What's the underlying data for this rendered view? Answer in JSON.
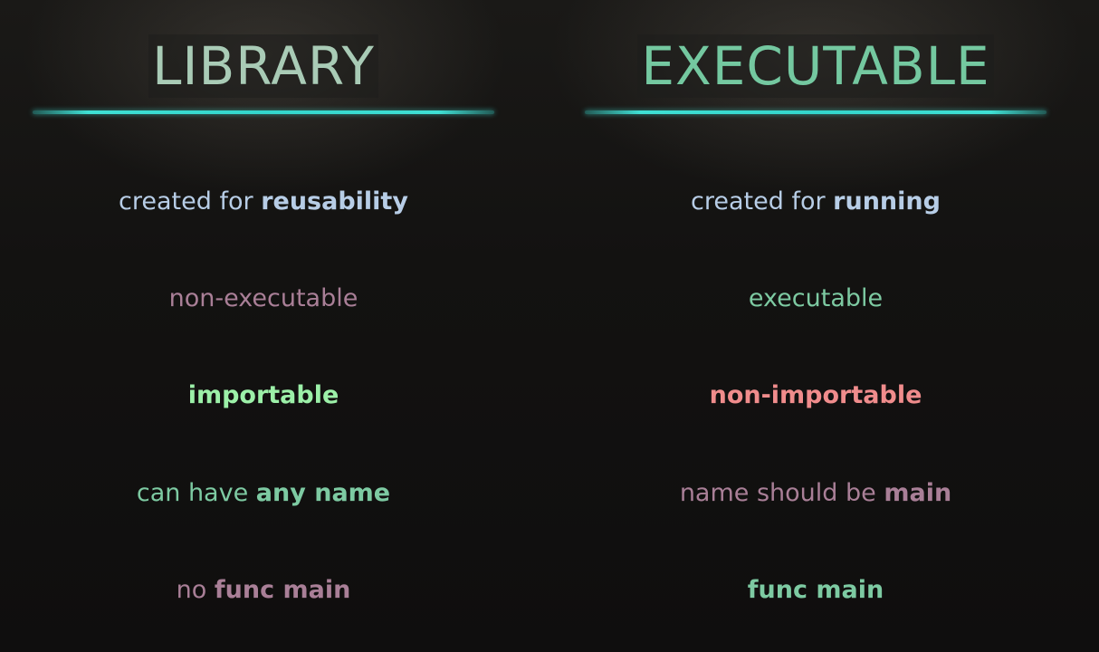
{
  "library": {
    "title": "LIBRARY",
    "rows": [
      {
        "prefix": "created for ",
        "bold": "reusability"
      },
      {
        "prefix": "non-executable",
        "bold": ""
      },
      {
        "prefix": "",
        "bold": "importable"
      },
      {
        "prefix": "can have ",
        "bold": "any name"
      },
      {
        "prefix": "no ",
        "bold": "func main"
      }
    ]
  },
  "executable": {
    "title": "EXECUTABLE",
    "rows": [
      {
        "prefix": "created for ",
        "bold": "running"
      },
      {
        "prefix": "executable",
        "bold": ""
      },
      {
        "prefix": "",
        "bold": "non-importable"
      },
      {
        "prefix": "name should be ",
        "bold": "main"
      },
      {
        "prefix": "",
        "bold": "func main"
      }
    ]
  },
  "colors": {
    "background": "#121110",
    "underline": "#33d6cc",
    "library_title": "#a9cbb6",
    "executable_title": "#74c8a0",
    "blue": "#b7cde6",
    "mauve": "#a97f97",
    "lime": "#9cf0a8",
    "teal": "#7dcaa2",
    "red": "#f08c8c"
  }
}
